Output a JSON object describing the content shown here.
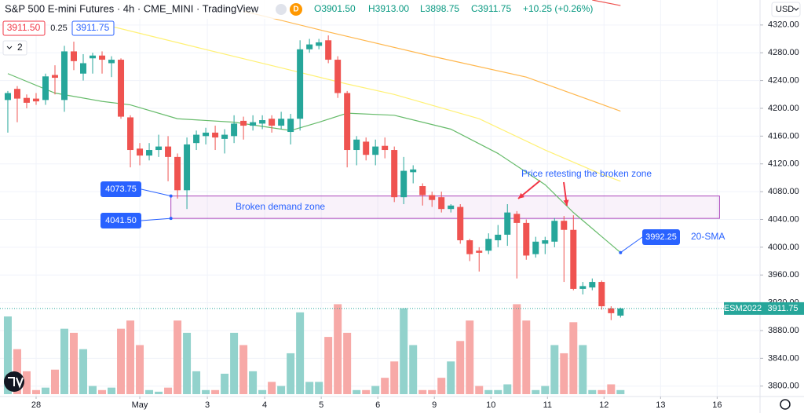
{
  "chart_data": {
    "type": "candlestick",
    "title": "S&P 500 E-mini Futures · 4h · CME_MINI · TradingView",
    "badge": "D",
    "ohlc_legend": [
      "O3901.50",
      "H3913.00",
      "L3898.75",
      "C3911.75",
      "+10.25 (+0.26%)"
    ],
    "bid": "3911.50",
    "spread": "0.25",
    "ask": "3911.75",
    "indicator_count": "2",
    "currency": "USD",
    "symbol": "ESM2022",
    "up_color": "#26a69a",
    "down_color": "#ef5350",
    "volume_up_color": "#92d2cc",
    "volume_down_color": "#f7a9a7",
    "open": [
      4212,
      4228,
      4215,
      4214,
      4212,
      4248,
      4212,
      4282,
      4250,
      4272,
      4276,
      4265,
      4270,
      4187,
      4142,
      4132,
      4140,
      4145,
      4130,
      4082,
      4150,
      4160,
      4165,
      4156,
      4160,
      4182,
      4175,
      4178,
      4185,
      4175,
      4166,
      4185,
      4285,
      4290,
      4298,
      4270,
      4222,
      4140,
      4152,
      4133,
      4146,
      4140,
      4072,
      4108,
      4088,
      4075,
      4072,
      4055,
      4058,
      4010,
      3995,
      3995,
      4010,
      4018,
      4048,
      4035,
      3990,
      4005,
      4008,
      4038,
      4025,
      3940,
      3942,
      3950,
      3912,
      3901.5
    ],
    "high": [
      4225,
      4232,
      4220,
      4222,
      4250,
      4262,
      4290,
      4296,
      4278,
      4280,
      4282,
      4275,
      4272,
      4190,
      4150,
      4150,
      4162,
      4160,
      4135,
      4158,
      4168,
      4172,
      4175,
      4170,
      4190,
      4188,
      4190,
      4190,
      4190,
      4195,
      4192,
      4298,
      4300,
      4300,
      4305,
      4275,
      4225,
      4160,
      4158,
      4155,
      4158,
      4145,
      4130,
      4118,
      4092,
      4080,
      4080,
      4062,
      4062,
      4012,
      4000,
      4020,
      4032,
      4062,
      4052,
      4040,
      4015,
      4015,
      4042,
      4045,
      4046,
      3950,
      3955,
      3952,
      3915,
      3913
    ],
    "low": [
      4165,
      4180,
      4200,
      4205,
      4205,
      4220,
      4195,
      4255,
      4240,
      4250,
      4250,
      4245,
      4185,
      4115,
      4118,
      4125,
      4130,
      4095,
      4070,
      4055,
      4140,
      4148,
      4140,
      4135,
      4150,
      4155,
      4168,
      4170,
      4165,
      4170,
      4148,
      4168,
      4280,
      4285,
      4265,
      4215,
      4115,
      4118,
      4125,
      4118,
      4128,
      4065,
      4062,
      4092,
      4060,
      4058,
      4050,
      4050,
      4005,
      3980,
      3965,
      3990,
      4000,
      4002,
      3955,
      3982,
      3985,
      3990,
      4000,
      3950,
      3938,
      3932,
      3938,
      3910,
      3895,
      3898.75
    ],
    "close": [
      4222,
      4214,
      4208,
      4210,
      4246,
      4244,
      4282,
      4268,
      4265,
      4276,
      4270,
      4270,
      4188,
      4140,
      4132,
      4140,
      4145,
      4130,
      4082,
      4148,
      4162,
      4165,
      4158,
      4162,
      4178,
      4175,
      4180,
      4183,
      4175,
      4185,
      4185,
      4285,
      4292,
      4295,
      4270,
      4222,
      4140,
      4155,
      4133,
      4145,
      4140,
      4072,
      4110,
      4112,
      4075,
      4068,
      4055,
      4060,
      4010,
      3990,
      3992,
      4012,
      4018,
      4050,
      4035,
      3988,
      4008,
      4010,
      4038,
      4025,
      3940,
      3944,
      3950,
      3915,
      3905,
      3911.75
    ],
    "volume": [
      95,
      55,
      28,
      5,
      8,
      30,
      80,
      75,
      55,
      10,
      5,
      8,
      80,
      90,
      60,
      5,
      3,
      8,
      90,
      75,
      28,
      5,
      5,
      25,
      75,
      60,
      28,
      5,
      15,
      10,
      50,
      100,
      15,
      15,
      70,
      110,
      75,
      5,
      5,
      10,
      20,
      40,
      105,
      60,
      5,
      5,
      20,
      40,
      65,
      90,
      10,
      5,
      5,
      12,
      110,
      90,
      5,
      10,
      60,
      50,
      88,
      60,
      5,
      5,
      12,
      5
    ],
    "volume_lim": [
      0,
      120
    ],
    "series": [
      {
        "name": "20-SMA",
        "color": "#66bb6a",
        "x": [
          0,
          5,
          10,
          13,
          18,
          24,
          30,
          33,
          36,
          41,
          47,
          52,
          57,
          60,
          65
        ],
        "values": [
          4250,
          4222,
          4210,
          4205,
          4185,
          4180,
          4168,
          4180,
          4193,
          4190,
          4170,
          4135,
          4090,
          4050,
          3992.25
        ]
      },
      {
        "color": "#fff176",
        "x": [
          11,
          20,
          30,
          36,
          41,
          50,
          57,
          63,
          65
        ],
        "values": [
          4318,
          4288,
          4255,
          4235,
          4220,
          4185,
          4140,
          4105,
          4095
        ]
      },
      {
        "color": "#ffb74d",
        "x": [
          25,
          34,
          45,
          55,
          65
        ],
        "values": [
          4340,
          4310,
          4275,
          4245,
          4196
        ]
      },
      {
        "color": "#ef5350",
        "x": [
          62,
          65
        ],
        "values": [
          4356,
          4348
        ]
      }
    ],
    "zone": {
      "label": "Broken demand zone",
      "top": {
        "value": 4073.75,
        "label": "4073.75"
      },
      "bottom": {
        "value": 4041.5,
        "label": "4041.50"
      },
      "xrange": [
        17.3,
        75.5
      ]
    },
    "annotation": "Price retesting the broken zone",
    "xlim": [
      -0.83,
      79.8
    ],
    "ylim": [
      3785,
      4356
    ],
    "xticks": [
      {
        "value": 3,
        "label": "28"
      },
      {
        "value": 14,
        "label": "May"
      },
      {
        "value": 21.17,
        "label": "3"
      },
      {
        "value": 27.25,
        "label": "4"
      },
      {
        "value": 33.25,
        "label": "5"
      },
      {
        "value": 39.25,
        "label": "6"
      },
      {
        "value": 45.25,
        "label": "9"
      },
      {
        "value": 51.25,
        "label": "10"
      },
      {
        "value": 57.25,
        "label": "11"
      },
      {
        "value": 63.25,
        "label": "12"
      },
      {
        "value": 69.25,
        "label": "13"
      },
      {
        "value": 75.25,
        "label": "16"
      }
    ],
    "yticks": [
      {
        "value": 3800,
        "label": "3800.00"
      },
      {
        "value": 3840,
        "label": "3840.00"
      },
      {
        "value": 3880,
        "label": "3880.00"
      },
      {
        "value": 3920,
        "label": "3920.00"
      },
      {
        "value": 3960,
        "label": "3960.00"
      },
      {
        "value": 4000,
        "label": "4000.00"
      },
      {
        "value": 4040,
        "label": "4040.00"
      },
      {
        "value": 4080,
        "label": "4080.00"
      },
      {
        "value": 4120,
        "label": "4120.00"
      },
      {
        "value": 4160,
        "label": "4160.00"
      },
      {
        "value": 4200,
        "label": "4200.00"
      },
      {
        "value": 4240,
        "label": "4240.00"
      },
      {
        "value": 4280,
        "label": "4280.00"
      },
      {
        "value": 4320,
        "label": "4320.00"
      }
    ],
    "grid": true
  }
}
